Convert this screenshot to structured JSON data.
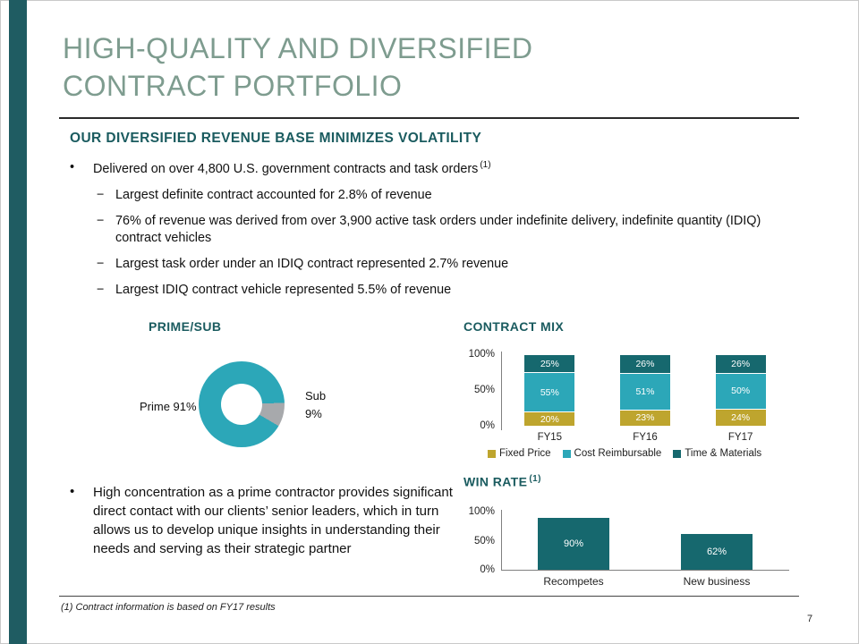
{
  "slide": {
    "title_line1": "HIGH-QUALITY AND DIVERSIFIED",
    "title_line2": "CONTRACT PORTFOLIO",
    "section_heading": "OUR DIVERSIFIED REVENUE BASE MINIMIZES VOLATILITY",
    "footnote": "(1) Contract information is based on FY17 results",
    "page_number": "7"
  },
  "colors": {
    "accent_bar": "#1F5C62",
    "title_green": "#7E9C8F",
    "heading_teal": "#1A5B5F",
    "teal_dark": "#16686E",
    "cyan": "#2CA7B8",
    "gold": "#BEA52E",
    "gray": "#A7A9AC"
  },
  "bullets": {
    "main1": "Delivered on over 4,800 U.S. government contracts and task orders",
    "main1_sup": "(1)",
    "sub": [
      "Largest definite contract accounted for 2.8% of revenue",
      "76% of revenue was derived from over 3,900 active task orders under indefinite delivery, indefinite quantity (IDIQ) contract vehicles",
      "Largest task order under an IDIQ contract represented 2.7% revenue",
      "Largest IDIQ contract vehicle represented 5.5% of revenue"
    ],
    "main2": "High concentration as a prime contractor provides significant direct contact with our clients’ senior leaders, which in turn allows us to develop unique insights in understanding their needs and serving as their strategic partner"
  },
  "chart_data": [
    {
      "type": "pie",
      "donut": true,
      "title": "PRIME/SUB",
      "labels": [
        "Prime",
        "Sub"
      ],
      "values": [
        91,
        9
      ],
      "display_labels": [
        "Prime 91%",
        "Sub 9%"
      ],
      "colors": [
        "#2CA7B8",
        "#A7A9AC"
      ]
    },
    {
      "type": "bar",
      "stacked": true,
      "title": "CONTRACT MIX",
      "categories": [
        "FY15",
        "FY16",
        "FY17"
      ],
      "series": [
        {
          "name": "Fixed Price",
          "color": "#BEA52E",
          "values": [
            20,
            23,
            24
          ]
        },
        {
          "name": "Cost Reimbursable",
          "color": "#2CA7B8",
          "values": [
            55,
            51,
            50
          ]
        },
        {
          "name": "Time & Materials",
          "color": "#16686E",
          "values": [
            25,
            26,
            26
          ]
        }
      ],
      "ylim": [
        0,
        100
      ],
      "yticks": [
        "100%",
        "50%",
        "0%"
      ],
      "legend_position": "bottom"
    },
    {
      "type": "bar",
      "title": "WIN RATE",
      "title_sup": "(1)",
      "categories": [
        "Recompetes",
        "New business"
      ],
      "values": [
        90,
        62
      ],
      "bar_color": "#16686E",
      "ylim": [
        0,
        100
      ],
      "yticks": [
        "100%",
        "50%",
        "0%"
      ]
    }
  ]
}
